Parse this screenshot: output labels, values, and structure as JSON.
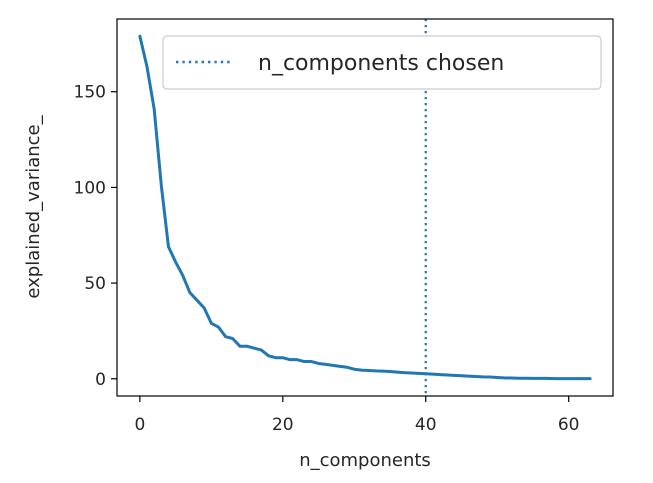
{
  "chart_data": {
    "type": "line",
    "xlabel": "n_components",
    "ylabel": "explained_variance_",
    "xlim": [
      -3.2,
      66.2
    ],
    "ylim": [
      -9,
      188
    ],
    "xticks": [
      0,
      20,
      40,
      60
    ],
    "yticks": [
      0,
      50,
      100,
      150
    ],
    "grid": false,
    "legend_placement": "top-right",
    "series": [
      {
        "color": "#1f77b4",
        "style": "solid",
        "x": [
          0,
          1,
          2,
          3,
          4,
          5,
          6,
          7,
          8,
          9,
          10,
          11,
          12,
          13,
          14,
          15,
          16,
          17,
          18,
          19,
          20,
          21,
          22,
          23,
          24,
          25,
          26,
          27,
          28,
          29,
          30,
          31,
          32,
          33,
          34,
          35,
          36,
          37,
          38,
          39,
          40,
          41,
          42,
          43,
          44,
          45,
          46,
          47,
          48,
          49,
          50,
          51,
          52,
          53,
          54,
          55,
          56,
          57,
          58,
          59,
          60,
          61,
          62,
          63
        ],
        "y": [
          179,
          163,
          141,
          101,
          69,
          61,
          54,
          45,
          41,
          37,
          29,
          27,
          22,
          21,
          17,
          17,
          16,
          15,
          12,
          11,
          11,
          10,
          10,
          9,
          9,
          8,
          7.5,
          7,
          6.5,
          6,
          5,
          4.5,
          4.3,
          4.1,
          4,
          3.8,
          3.5,
          3.2,
          3,
          2.8,
          2.6,
          2.4,
          2.2,
          2,
          1.8,
          1.6,
          1.4,
          1.2,
          1,
          0.9,
          0.7,
          0.5,
          0.4,
          0.3,
          0.3,
          0.2,
          0.2,
          0.2,
          0.1,
          0.1,
          0.1,
          0.1,
          0.1,
          0.1
        ]
      }
    ],
    "vline": {
      "x": 40,
      "color": "#1f77b4",
      "style": "dotted",
      "legend_label": "n_components chosen"
    }
  }
}
